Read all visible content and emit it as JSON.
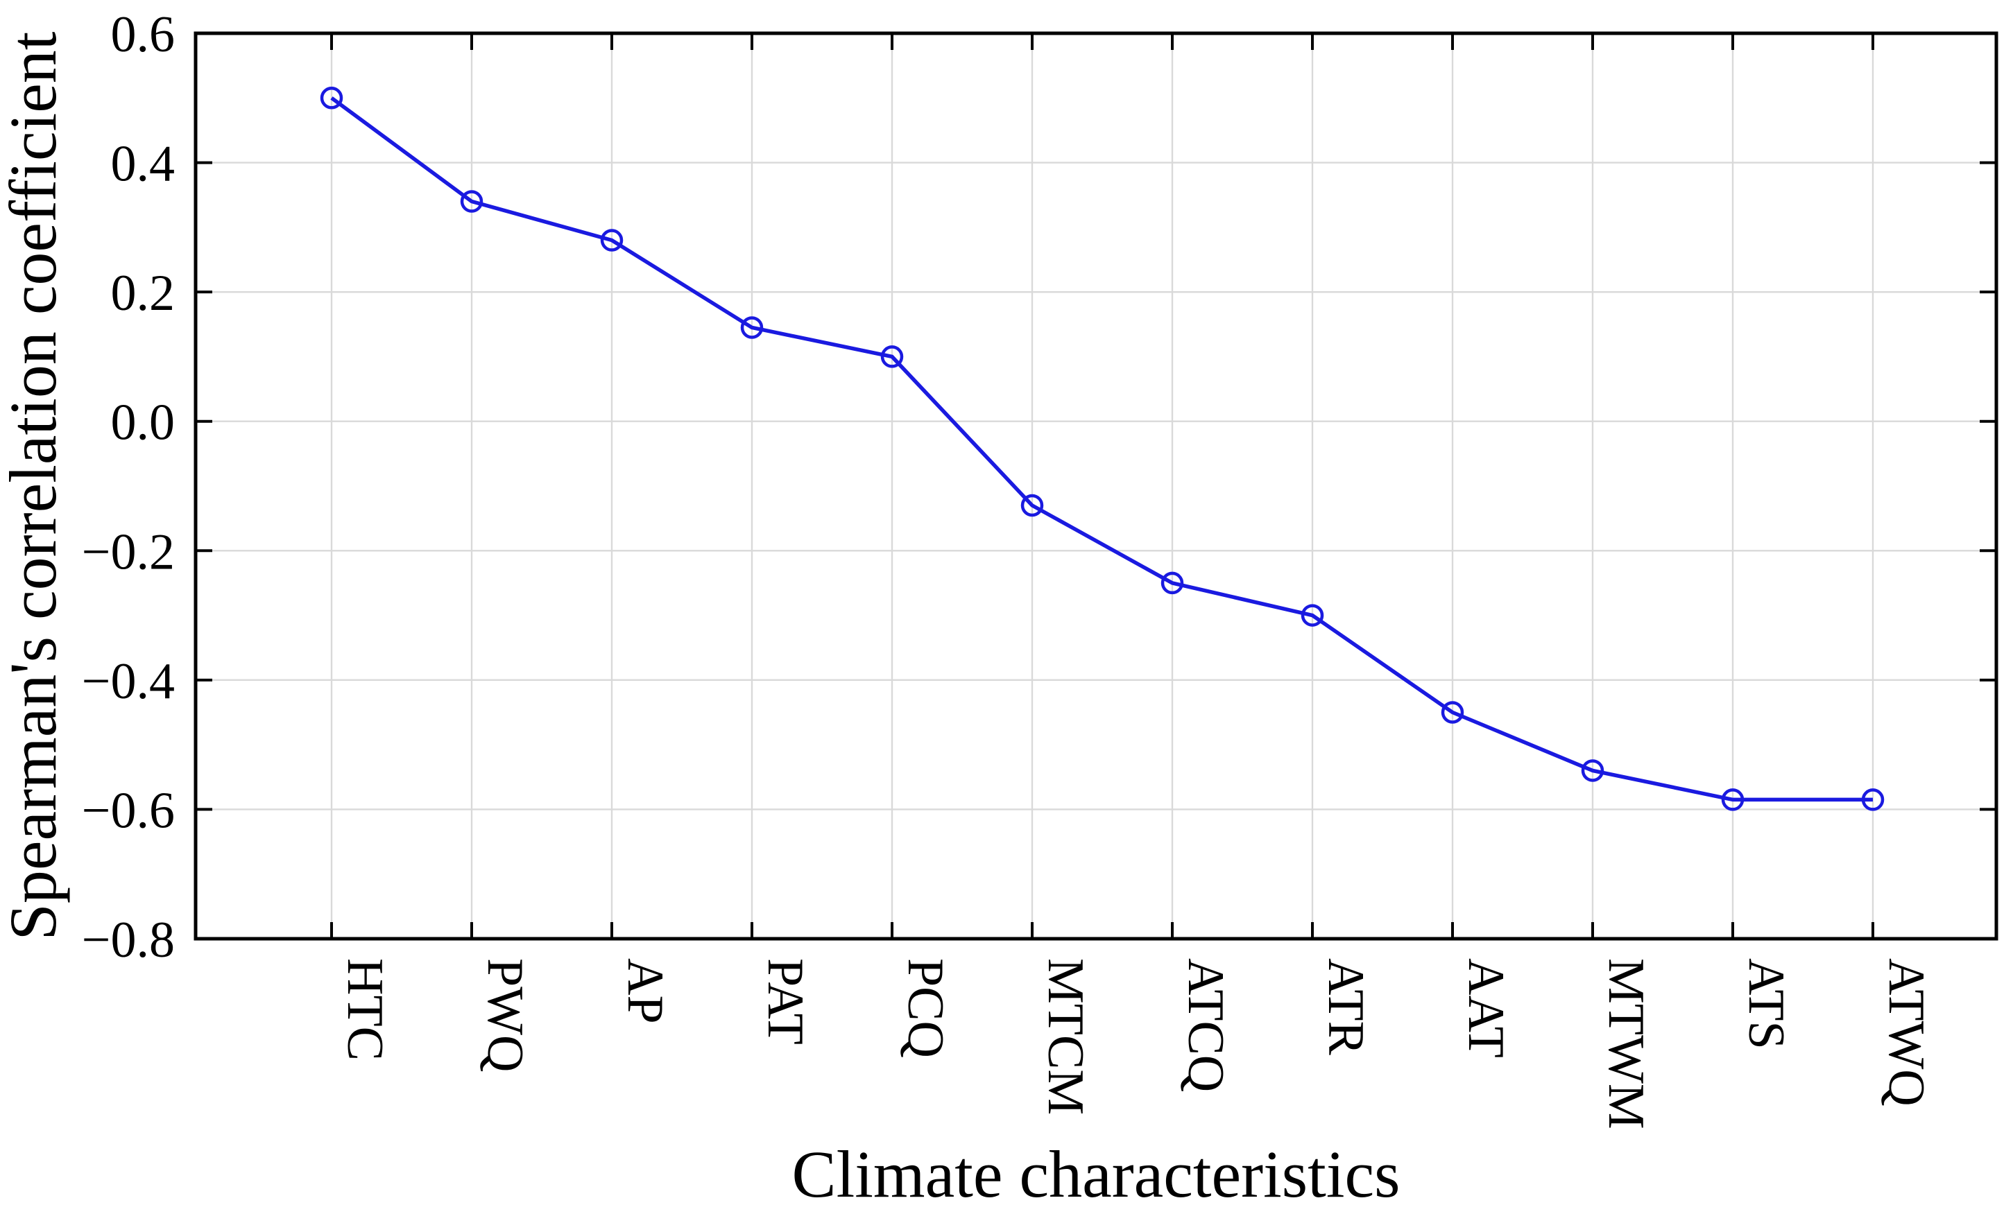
{
  "figure": {
    "background": "#ffffff"
  },
  "chart_data": {
    "type": "line",
    "title": "",
    "xlabel": "Climate characteristics",
    "ylabel": "Spearman's correlation coefficient",
    "categories": [
      "HTC",
      "PWQ",
      "AP",
      "PAT",
      "PCQ",
      "MTCM",
      "ATCQ",
      "ATR",
      "AAT",
      "MTWM",
      "ATS",
      "ATWQ"
    ],
    "series": [
      {
        "name": "Spearman's correlation coefficient",
        "values": [
          0.5,
          0.34,
          0.28,
          0.145,
          0.1,
          -0.13,
          -0.25,
          -0.3,
          -0.45,
          -0.54,
          -0.585,
          -0.585
        ]
      }
    ],
    "ylim": [
      -0.8,
      0.6
    ],
    "yticks": [
      0.6,
      0.4,
      0.2,
      0.0,
      -0.2,
      -0.4,
      -0.6,
      -0.8
    ],
    "ytick_labels": [
      "0.6",
      "0.4",
      "0.2",
      "0.0",
      "−0.2",
      "−0.4",
      "−0.6",
      "−0.8"
    ],
    "grid": true,
    "legend_position": "none",
    "x_tick_rotation_deg": 90,
    "marker": "open-circle",
    "line_color": "#1a1ae0",
    "grid_color": "#d9d9d9",
    "axis_color": "#000000",
    "text_color": "#000000"
  }
}
